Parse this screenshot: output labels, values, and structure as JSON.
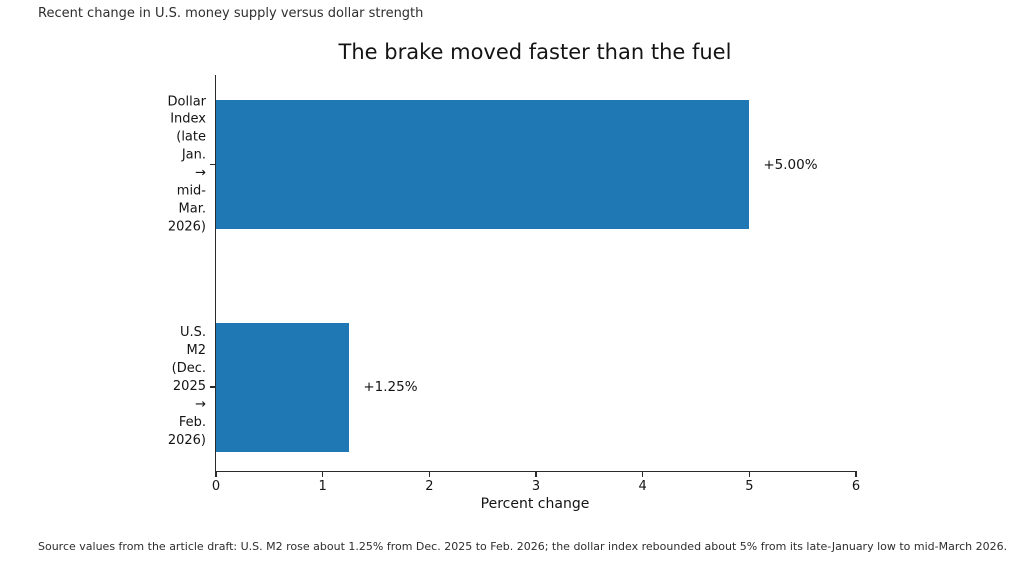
{
  "figure": {
    "suptitle": "Recent change in U.S. money supply versus dollar strength",
    "source_note": "Source values from the article draft: U.S. M2 rose about 1.25% from Dec. 2025 to Feb. 2026; the dollar index rebounded about 5% from its late-January low to mid-March 2026."
  },
  "chart_data": {
    "type": "bar",
    "orientation": "horizontal",
    "title": "The brake moved faster than the fuel",
    "categories": [
      "Dollar Index\n(late Jan. → mid-Mar. 2026)",
      "U.S. M2\n(Dec. 2025 → Feb. 2026)"
    ],
    "values": [
      5.0,
      1.25
    ],
    "value_labels": [
      "+5.00%",
      "+1.25%"
    ],
    "xlabel": "Percent change",
    "xlim": [
      0,
      6
    ],
    "xticks": [
      0,
      1,
      2,
      3,
      4,
      5,
      6
    ],
    "bar_color": "#1f77b4",
    "grid": false,
    "legend": false
  }
}
